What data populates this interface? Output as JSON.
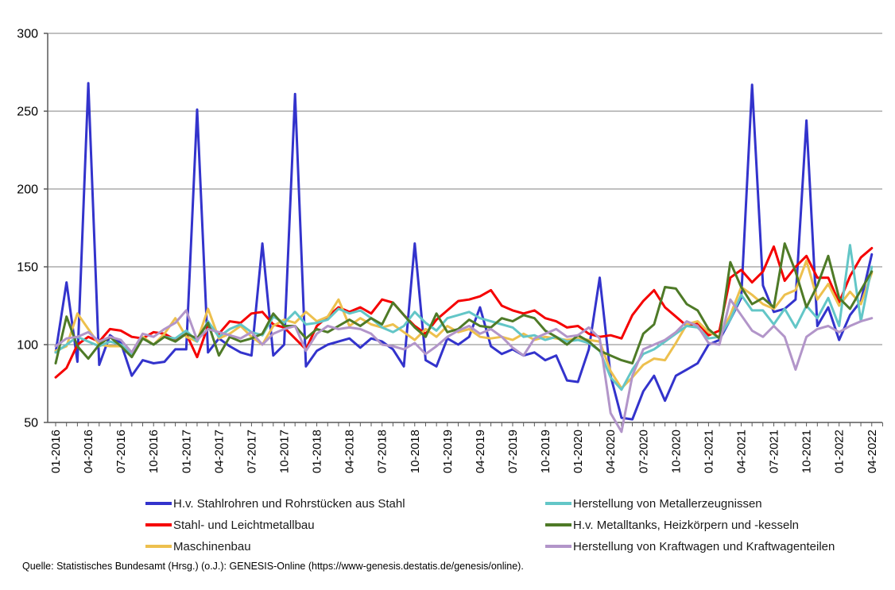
{
  "source_note": "Quelle: Statistisches Bundesamt (Hrsg.) (o.J.): GENESIS-Online (https://www-genesis.destatis.de/genesis/online).",
  "chart_data": {
    "type": "line",
    "title": "",
    "xlabel": "",
    "ylabel": "",
    "ylim": [
      50,
      300
    ],
    "y_ticks": [
      300,
      250,
      200,
      150,
      100,
      50
    ],
    "grid": "horizontal",
    "grid_color": "#808080",
    "axis_color": "#595959",
    "text_color": "#000000",
    "x_tick_step": 3,
    "legend_position": "bottom",
    "x": [
      "01-2016",
      "02-2016",
      "03-2016",
      "04-2016",
      "05-2016",
      "06-2016",
      "07-2016",
      "08-2016",
      "09-2016",
      "10-2016",
      "11-2016",
      "12-2016",
      "01-2017",
      "02-2017",
      "03-2017",
      "04-2017",
      "05-2017",
      "06-2017",
      "07-2017",
      "08-2017",
      "09-2017",
      "10-2017",
      "11-2017",
      "12-2017",
      "01-2018",
      "02-2018",
      "03-2018",
      "04-2018",
      "05-2018",
      "06-2018",
      "07-2018",
      "08-2018",
      "09-2018",
      "10-2018",
      "11-2018",
      "12-2018",
      "01-2019",
      "02-2019",
      "03-2019",
      "04-2019",
      "05-2019",
      "06-2019",
      "07-2019",
      "08-2019",
      "09-2019",
      "10-2019",
      "11-2019",
      "12-2019",
      "01-2020",
      "02-2020",
      "03-2020",
      "04-2020",
      "05-2020",
      "06-2020",
      "07-2020",
      "08-2020",
      "09-2020",
      "10-2020",
      "11-2020",
      "12-2020",
      "01-2021",
      "02-2021",
      "03-2021",
      "04-2021",
      "05-2021",
      "06-2021",
      "07-2021",
      "08-2021",
      "09-2021",
      "10-2021",
      "11-2021",
      "12-2021",
      "01-2022",
      "02-2022",
      "03-2022",
      "04-2022"
    ],
    "series": [
      {
        "name": "H.v. Stahlrohren und Rohrstücken aus Stahl",
        "color": "#3333CC",
        "values": [
          95,
          140,
          89,
          268,
          87,
          106,
          101,
          80,
          90,
          88,
          89,
          97,
          97,
          251,
          95,
          104,
          99,
          95,
          93,
          165,
          93,
          100,
          261,
          86,
          96,
          100,
          102,
          104,
          98,
          104,
          102,
          97,
          86,
          165,
          90,
          86,
          104,
          100,
          105,
          124,
          99,
          94,
          97,
          93,
          95,
          90,
          93,
          77,
          76,
          97,
          143,
          80,
          53,
          52,
          70,
          80,
          64,
          80,
          84,
          88,
          100,
          103,
          116,
          130,
          267,
          138,
          121,
          123,
          129,
          244,
          112,
          124,
          103,
          119,
          128,
          158
        ]
      },
      {
        "name": "Stahl- und Leichtmetallbau",
        "color": "#F50000",
        "values": [
          79,
          85,
          100,
          105,
          102,
          110,
          109,
          105,
          104,
          108,
          107,
          103,
          107,
          92,
          112,
          107,
          115,
          114,
          120,
          121,
          113,
          111,
          104,
          97,
          112,
          118,
          124,
          121,
          124,
          120,
          129,
          127,
          119,
          112,
          107,
          116,
          122,
          128,
          129,
          131,
          135,
          125,
          122,
          120,
          122,
          117,
          115,
          111,
          112,
          107,
          105,
          106,
          104,
          119,
          128,
          135,
          124,
          118,
          112,
          114,
          106,
          109,
          143,
          148,
          140,
          147,
          163,
          141,
          150,
          157,
          143,
          143,
          127,
          144,
          156,
          162
        ]
      },
      {
        "name": "Maschinenbau",
        "color": "#EDC04E",
        "values": [
          96,
          99,
          120,
          110,
          100,
          99,
          99,
          94,
          105,
          100,
          107,
          117,
          105,
          102,
          123,
          104,
          107,
          112,
          105,
          100,
          112,
          116,
          114,
          121,
          115,
          118,
          129,
          112,
          117,
          113,
          111,
          113,
          108,
          103,
          110,
          105,
          112,
          108,
          110,
          105,
          104,
          105,
          103,
          107,
          103,
          105,
          104,
          103,
          104,
          103,
          102,
          83,
          72,
          79,
          87,
          91,
          90,
          101,
          113,
          115,
          108,
          105,
          119,
          137,
          132,
          126,
          123,
          132,
          135,
          154,
          129,
          139,
          125,
          134,
          126,
          146
        ]
      },
      {
        "name": "Herstellung von Metallerzeugnissen",
        "color": "#63C6C7",
        "values": [
          95,
          100,
          105,
          102,
          99,
          102,
          100,
          94,
          104,
          100,
          105,
          104,
          109,
          102,
          115,
          105,
          110,
          113,
          108,
          106,
          118,
          114,
          121,
          113,
          114,
          116,
          123,
          120,
          122,
          117,
          111,
          108,
          112,
          121,
          114,
          109,
          117,
          119,
          121,
          117,
          115,
          113,
          111,
          105,
          106,
          103,
          105,
          102,
          103,
          101,
          96,
          79,
          71,
          84,
          94,
          97,
          102,
          107,
          112,
          111,
          104,
          105,
          116,
          132,
          122,
          122,
          113,
          123,
          111,
          125,
          117,
          130,
          112,
          164,
          115,
          150
        ]
      },
      {
        "name": "H.v. Metalltanks, Heizkörpern und -kesseln",
        "color": "#4E7A27",
        "values": [
          88,
          118,
          99,
          91,
          100,
          105,
          99,
          92,
          104,
          100,
          105,
          102,
          107,
          104,
          114,
          93,
          105,
          102,
          104,
          107,
          120,
          112,
          112,
          104,
          110,
          108,
          112,
          116,
          112,
          117,
          113,
          127,
          119,
          111,
          105,
          120,
          108,
          110,
          116,
          112,
          111,
          117,
          115,
          119,
          117,
          109,
          105,
          100,
          106,
          102,
          96,
          93,
          90,
          88,
          107,
          113,
          137,
          136,
          126,
          122,
          110,
          104,
          153,
          137,
          126,
          130,
          124,
          165,
          147,
          124,
          138,
          157,
          130,
          123,
          135,
          147
        ]
      },
      {
        "name": "Herstellung von Kraftwagen und Kraftwagenteilen",
        "color": "#B295C9",
        "values": [
          99,
          104,
          105,
          108,
          102,
          105,
          103,
          95,
          107,
          105,
          110,
          114,
          122,
          103,
          110,
          108,
          106,
          104,
          108,
          100,
          107,
          110,
          112,
          96,
          107,
          112,
          110,
          111,
          110,
          107,
          100,
          99,
          97,
          101,
          94,
          99,
          105,
          109,
          112,
          107,
          110,
          105,
          98,
          93,
          104,
          107,
          110,
          105,
          106,
          111,
          104,
          56,
          44,
          80,
          97,
          100,
          103,
          108,
          115,
          112,
          101,
          100,
          129,
          119,
          109,
          105,
          112,
          105,
          84,
          105,
          110,
          112,
          108,
          112,
          115,
          117
        ]
      }
    ]
  },
  "legend": {
    "columns": [
      [
        0,
        1,
        2
      ],
      [
        3,
        4,
        5
      ]
    ]
  }
}
